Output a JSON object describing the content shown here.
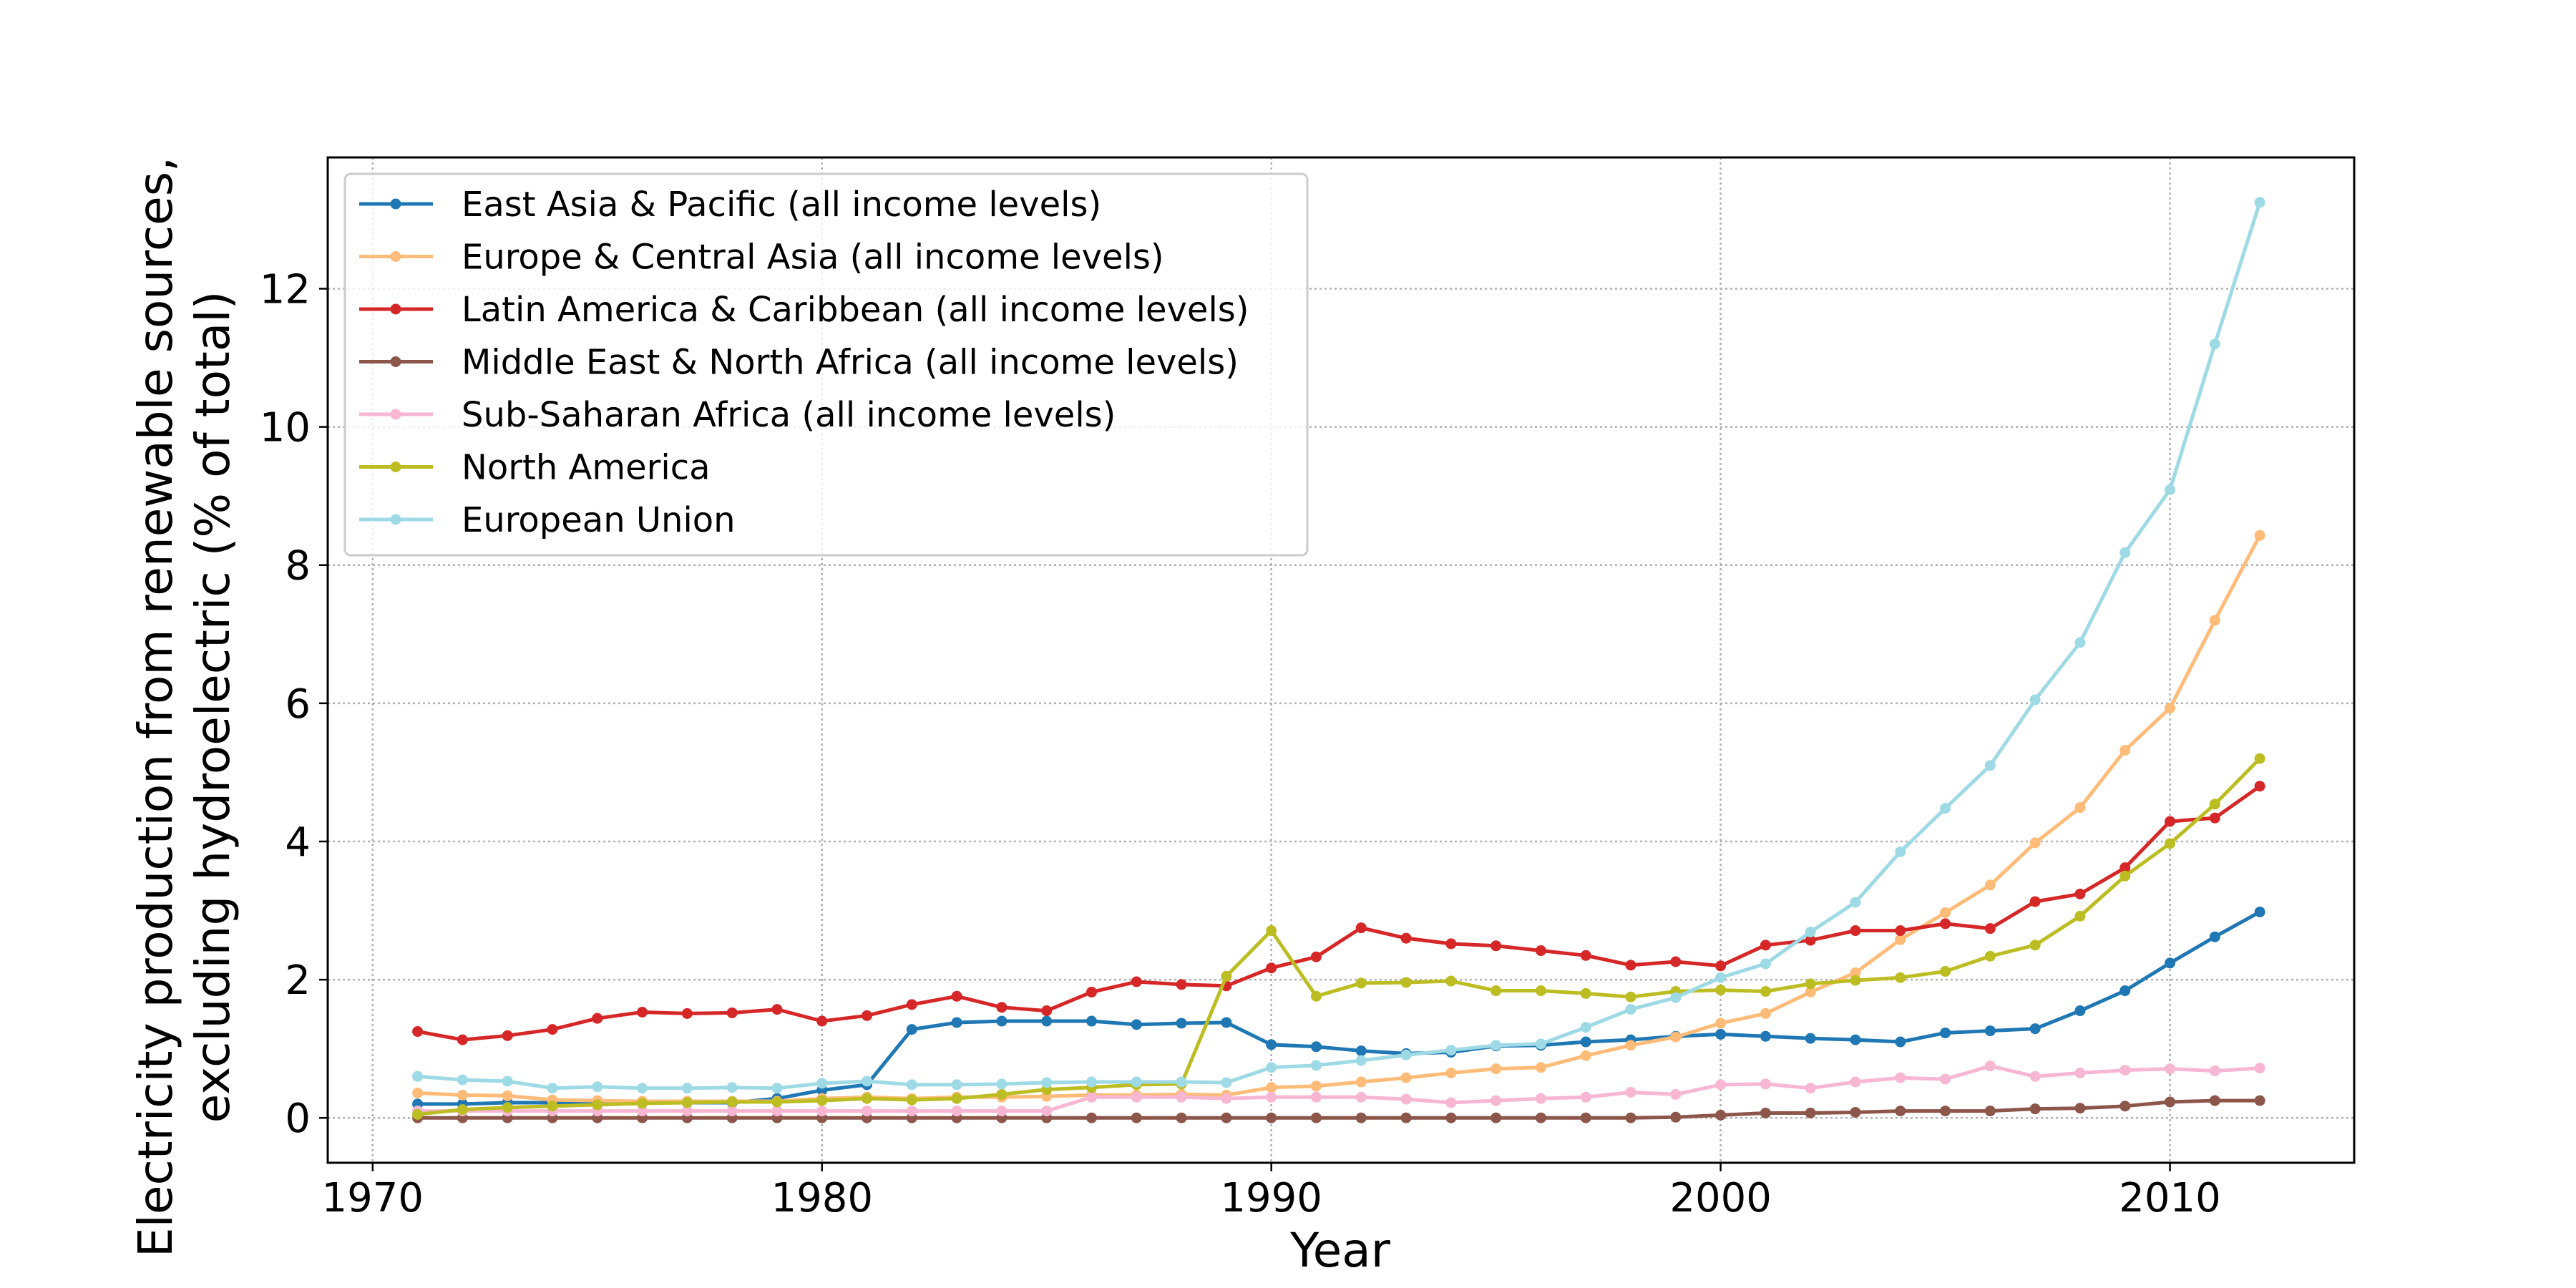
{
  "chart_data": {
    "type": "line",
    "title": "",
    "xlabel": "Year",
    "ylabel_lines": [
      "Electricity production from renewable sources,",
      "excluding hydroelectric (% of total)"
    ],
    "xlim": [
      1969.0,
      2014.1
    ],
    "ylim": [
      -0.65,
      13.9
    ],
    "xticks": [
      1970,
      1980,
      1990,
      2000,
      2010
    ],
    "yticks": [
      0,
      2,
      4,
      6,
      8,
      10,
      12
    ],
    "grid": true,
    "legend_position": "top-left",
    "x": [
      1971,
      1972,
      1973,
      1974,
      1975,
      1976,
      1977,
      1978,
      1979,
      1980,
      1981,
      1982,
      1983,
      1984,
      1985,
      1986,
      1987,
      1988,
      1989,
      1990,
      1991,
      1992,
      1993,
      1994,
      1995,
      1996,
      1997,
      1998,
      1999,
      2000,
      2001,
      2002,
      2003,
      2004,
      2005,
      2006,
      2007,
      2008,
      2009,
      2010,
      2011,
      2012
    ],
    "series": [
      {
        "name": "East Asia & Pacific (all income levels)",
        "color": "#1f77b4",
        "values": [
          0.2,
          0.2,
          0.22,
          0.22,
          0.22,
          0.22,
          0.22,
          0.22,
          0.28,
          0.4,
          0.48,
          1.28,
          1.38,
          1.4,
          1.4,
          1.4,
          1.35,
          1.37,
          1.38,
          1.06,
          1.03,
          0.97,
          0.93,
          0.95,
          1.04,
          1.05,
          1.1,
          1.13,
          1.18,
          1.21,
          1.18,
          1.15,
          1.13,
          1.1,
          1.23,
          1.26,
          1.29,
          1.55,
          1.84,
          2.24,
          2.62,
          2.98
        ]
      },
      {
        "name": "Europe & Central Asia (all income levels)",
        "color": "#ffbb78",
        "values": [
          0.36,
          0.33,
          0.32,
          0.26,
          0.25,
          0.24,
          0.24,
          0.24,
          0.24,
          0.28,
          0.3,
          0.28,
          0.3,
          0.3,
          0.31,
          0.33,
          0.33,
          0.34,
          0.33,
          0.44,
          0.46,
          0.52,
          0.58,
          0.65,
          0.71,
          0.73,
          0.9,
          1.05,
          1.17,
          1.37,
          1.51,
          1.82,
          2.1,
          2.58,
          2.97,
          3.37,
          3.98,
          4.49,
          5.32,
          5.93,
          7.2,
          8.43
        ]
      },
      {
        "name": "Latin America & Caribbean (all income levels)",
        "color": "#d62728",
        "values": [
          1.25,
          1.13,
          1.19,
          1.28,
          1.44,
          1.53,
          1.51,
          1.52,
          1.57,
          1.4,
          1.48,
          1.64,
          1.76,
          1.6,
          1.55,
          1.82,
          1.97,
          1.93,
          1.91,
          2.17,
          2.33,
          2.75,
          2.6,
          2.52,
          2.49,
          2.42,
          2.35,
          2.21,
          2.26,
          2.2,
          2.5,
          2.57,
          2.71,
          2.71,
          2.81,
          2.74,
          3.13,
          3.24,
          3.62,
          4.29,
          4.34,
          4.8
        ]
      },
      {
        "name": "Middle East & North Africa (all income levels)",
        "color": "#8c564b",
        "values": [
          0,
          0,
          0,
          0,
          0,
          0,
          0,
          0,
          0,
          0,
          0,
          0,
          0,
          0,
          0,
          0,
          0,
          0,
          0,
          0,
          0,
          0,
          0,
          0,
          0,
          0,
          0,
          0,
          0.01,
          0.04,
          0.07,
          0.07,
          0.08,
          0.1,
          0.1,
          0.1,
          0.13,
          0.14,
          0.17,
          0.23,
          0.25,
          0.25
        ]
      },
      {
        "name": "Sub-Saharan Africa (all income levels)",
        "color": "#f7b6d2",
        "values": [
          0.1,
          0.1,
          0.1,
          0.1,
          0.1,
          0.1,
          0.1,
          0.1,
          0.1,
          0.1,
          0.1,
          0.1,
          0.1,
          0.1,
          0.1,
          0.3,
          0.3,
          0.3,
          0.28,
          0.3,
          0.3,
          0.3,
          0.27,
          0.22,
          0.25,
          0.28,
          0.3,
          0.37,
          0.34,
          0.48,
          0.49,
          0.43,
          0.52,
          0.58,
          0.56,
          0.75,
          0.6,
          0.65,
          0.69,
          0.71,
          0.68,
          0.72
        ]
      },
      {
        "name": "North America",
        "color": "#bcbd22",
        "values": [
          0.05,
          0.12,
          0.15,
          0.17,
          0.19,
          0.21,
          0.22,
          0.23,
          0.23,
          0.25,
          0.28,
          0.26,
          0.28,
          0.34,
          0.41,
          0.44,
          0.48,
          0.49,
          2.05,
          2.71,
          1.76,
          1.95,
          1.96,
          1.98,
          1.84,
          1.84,
          1.8,
          1.75,
          1.83,
          1.85,
          1.83,
          1.94,
          1.99,
          2.03,
          2.12,
          2.34,
          2.5,
          2.92,
          3.5,
          3.97,
          4.54,
          5.2
        ]
      },
      {
        "name": "European Union",
        "color": "#9edae5",
        "values": [
          0.6,
          0.55,
          0.53,
          0.43,
          0.45,
          0.43,
          0.43,
          0.44,
          0.43,
          0.5,
          0.53,
          0.48,
          0.48,
          0.49,
          0.51,
          0.52,
          0.52,
          0.52,
          0.51,
          0.73,
          0.76,
          0.83,
          0.91,
          0.98,
          1.05,
          1.07,
          1.31,
          1.57,
          1.74,
          2.03,
          2.23,
          2.69,
          3.12,
          3.85,
          4.48,
          5.1,
          6.05,
          6.88,
          8.18,
          9.09,
          11.2,
          13.25
        ]
      }
    ]
  }
}
